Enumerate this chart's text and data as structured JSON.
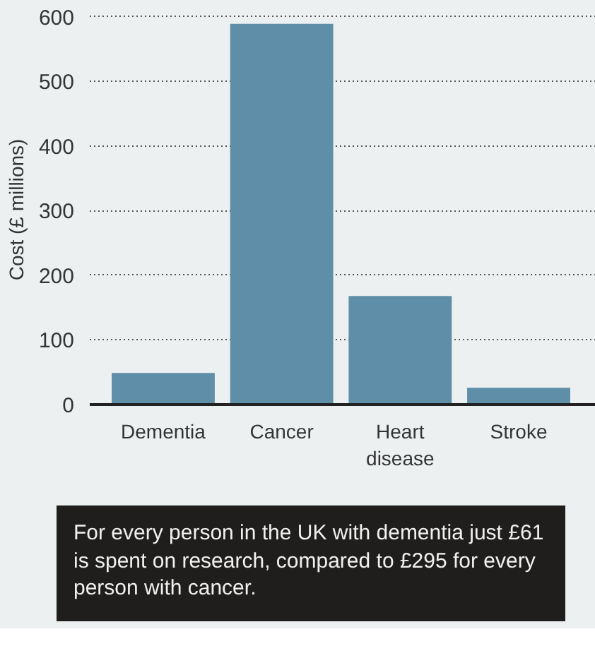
{
  "chart_data": {
    "type": "bar",
    "ylabel": "Cost (£ millions)",
    "categories": [
      "Dementia",
      "Cancer",
      "Heart disease",
      "Stroke"
    ],
    "values": [
      49,
      589,
      168,
      26
    ],
    "color": "#5f8fa8",
    "ylim": [
      0,
      600
    ],
    "yticks": [
      0,
      100,
      200,
      300,
      400,
      500,
      600
    ],
    "grid": "y",
    "annotations": [
      "For every person in the UK with dementia just £61 is spent on research, compared to £295 for every person with cancer."
    ]
  }
}
